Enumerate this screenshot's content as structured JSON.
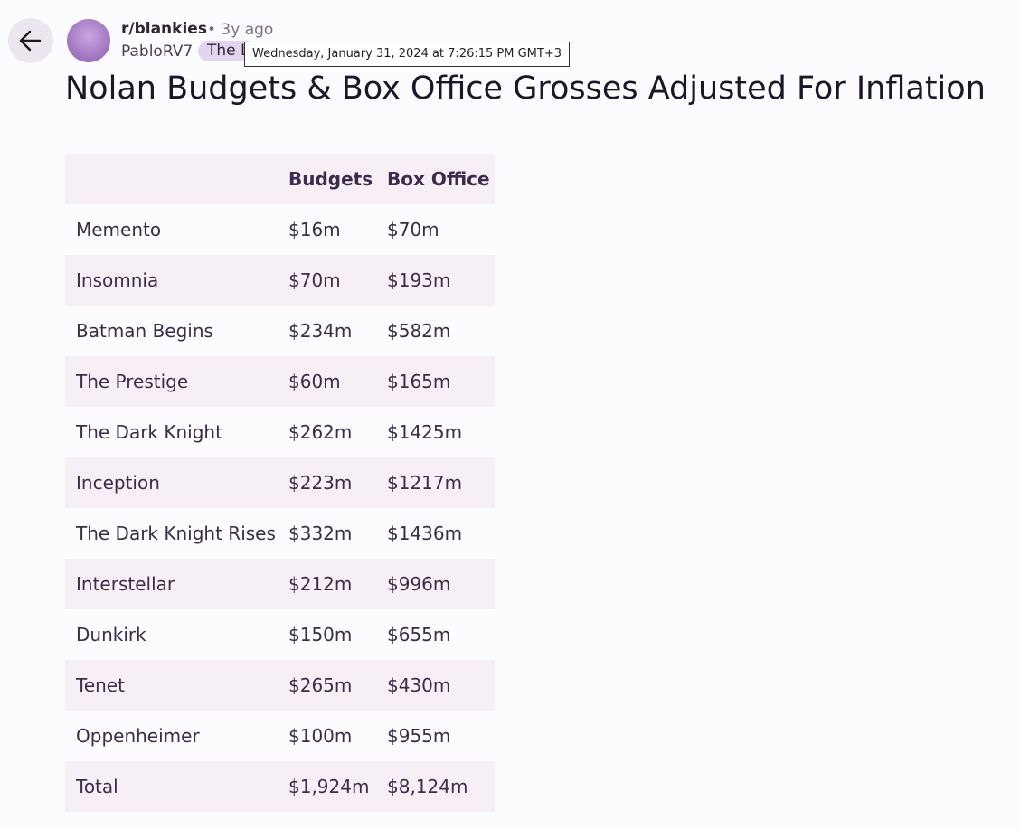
{
  "header": {
    "subreddit": "r/blankies",
    "age": "• 3y ago",
    "username": "PabloRV7",
    "flair": "The L",
    "tooltip": "Wednesday, January 31, 2024 at 7:26:15 PM GMT+3"
  },
  "post": {
    "title": "Nolan Budgets & Box Office Grosses Adjusted For Inflation"
  },
  "table": {
    "columns": [
      "Budgets",
      "Box Office"
    ],
    "rows": [
      [
        "Memento",
        "$16m",
        "$70m"
      ],
      [
        "Insomnia",
        "$70m",
        "$193m"
      ],
      [
        "Batman Begins",
        "$234m",
        "$582m"
      ],
      [
        "The Prestige",
        "$60m",
        "$165m"
      ],
      [
        "The Dark Knight",
        "$262m",
        "$1425m"
      ],
      [
        "Inception",
        "$223m",
        "$1217m"
      ],
      [
        "The Dark Knight Rises",
        "$332m",
        "$1436m"
      ],
      [
        "Interstellar",
        "$212m",
        "$996m"
      ],
      [
        "Dunkirk",
        "$150m",
        "$655m"
      ],
      [
        "Tenet",
        "$265m",
        "$430m"
      ],
      [
        "Oppenheimer",
        "$100m",
        "$955m"
      ],
      [
        "Total",
        "$1,924m",
        "$8,124m"
      ]
    ]
  }
}
